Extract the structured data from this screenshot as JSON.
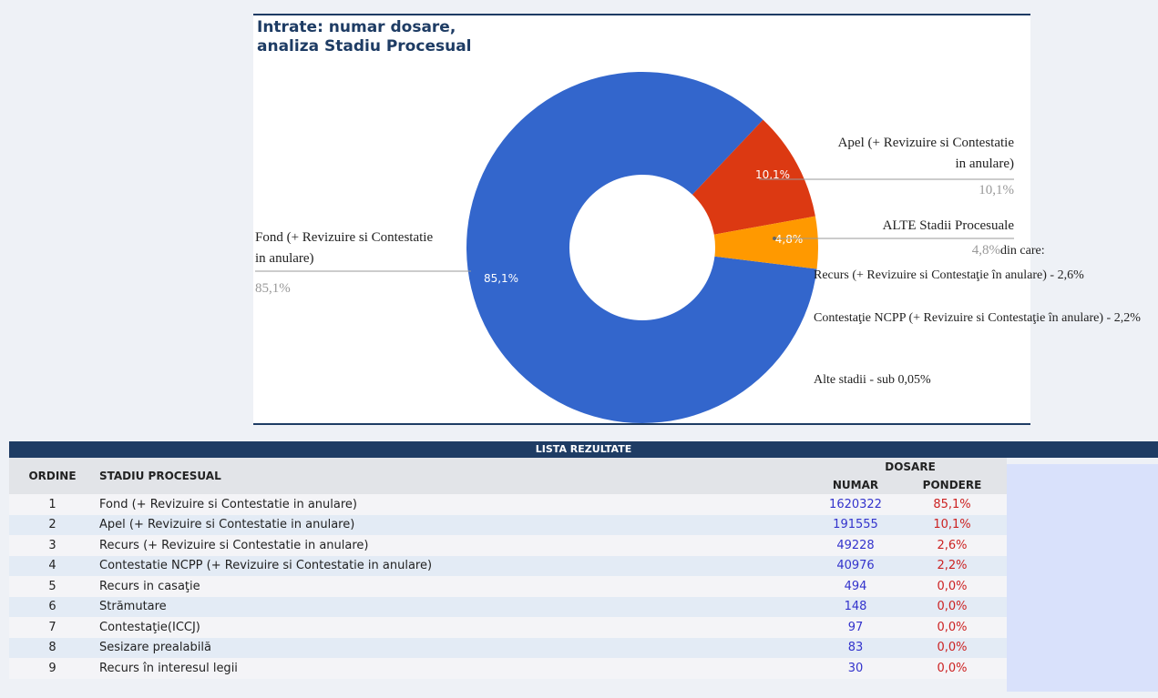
{
  "chart_data": {
    "type": "donut",
    "title": "Intrate: numar dosare, analiza Stadiu Procesual",
    "categories": [
      "Fond (+ Revizuire si Contestatie in anulare)",
      "Apel (+ Revizuire si Contestatie in anulare)",
      "ALTE Stadii Procesuale"
    ],
    "values": [
      85.1,
      10.1,
      4.8
    ],
    "value_labels": [
      "85,1%",
      "10,1%",
      "4,8%"
    ],
    "colors": [
      "#3366cc",
      "#dc3912",
      "#ff9900"
    ],
    "annotations": [
      "din care:",
      "Recurs (+ Revizuire si Contestaţie în anulare) - 2,6%",
      "Contestaţie NCPP (+ Revizuire si Contestaţie în anulare) - 2,2%",
      "Alte stadii -  sub 0,05%"
    ]
  },
  "table": {
    "title": "LISTA REZULTATE",
    "group": "DOSARE",
    "columns": [
      "ORDINE",
      "STADIU PROCESUAL",
      "NUMAR",
      "PONDERE"
    ],
    "rows": [
      [
        1,
        "Fond (+ Revizuire si Contestatie in anulare)",
        1620322,
        "85,1%"
      ],
      [
        2,
        "Apel (+ Revizuire si Contestatie in anulare)",
        191555,
        "10,1%"
      ],
      [
        3,
        "Recurs (+ Revizuire si Contestatie in anulare)",
        49228,
        "2,6%"
      ],
      [
        4,
        "Contestatie NCPP (+ Revizuire si Contestatie in anulare)",
        40976,
        "2,2%"
      ],
      [
        5,
        "Recurs in casaţie",
        494,
        "0,0%"
      ],
      [
        6,
        "Strămutare",
        148,
        "0,0%"
      ],
      [
        7,
        "Contestaţie(ICCJ)",
        97,
        "0,0%"
      ],
      [
        8,
        "Sesizare prealabilă",
        83,
        "0,0%"
      ],
      [
        9,
        "Recurs în interesul legii",
        30,
        "0,0%"
      ]
    ]
  }
}
